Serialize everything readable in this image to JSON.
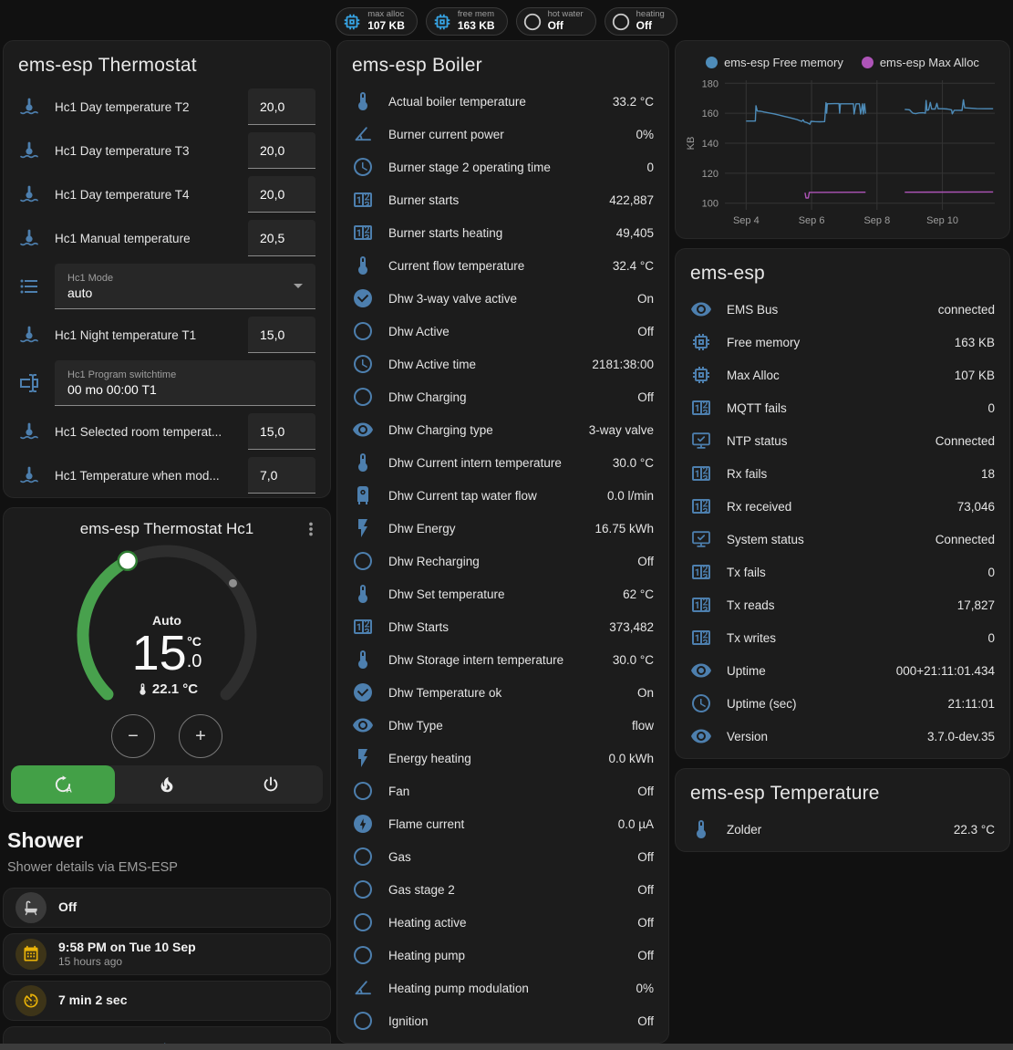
{
  "colors": {
    "icon_blue": "#4d7fae",
    "badge_icon_blue": "#36a3e3",
    "active_green": "#43a047",
    "dial_green": "#48a14d",
    "amber": "#eab308",
    "chart_free_memory": "#4e8cb9",
    "chart_max_alloc": "#ae54b8"
  },
  "header_badges": [
    {
      "label": "max alloc",
      "value": "107 KB",
      "icon": "chip-icon",
      "style": "blue"
    },
    {
      "label": "free mem",
      "value": "163 KB",
      "icon": "chip-icon",
      "style": "blue"
    },
    {
      "label": "hot water",
      "value": "Off",
      "icon": "circle-outline-icon",
      "style": "gray"
    },
    {
      "label": "heating",
      "value": "Off",
      "icon": "circle-outline-icon",
      "style": "gray"
    }
  ],
  "thermostat_card": {
    "title": "ems-esp Thermostat",
    "rows": [
      {
        "type": "number",
        "icon": "thermometer-water-icon",
        "label": "Hc1 Day temperature T2",
        "value": "20,0"
      },
      {
        "type": "number",
        "icon": "thermometer-water-icon",
        "label": "Hc1 Day temperature T3",
        "value": "20,0"
      },
      {
        "type": "number",
        "icon": "thermometer-water-icon",
        "label": "Hc1 Day temperature T4",
        "value": "20,0"
      },
      {
        "type": "number",
        "icon": "thermometer-water-icon",
        "label": "Hc1 Manual temperature",
        "value": "20,5"
      },
      {
        "type": "select",
        "icon": "format-list-icon",
        "label": "Hc1 Mode",
        "value": "auto"
      },
      {
        "type": "number",
        "icon": "thermometer-water-icon",
        "label": "Hc1 Night temperature T1",
        "value": "15,0"
      },
      {
        "type": "text",
        "icon": "form-textbox-icon",
        "label": "Hc1 Program switchtime",
        "value": "00 mo 00:00 T1"
      },
      {
        "type": "number",
        "icon": "thermometer-water-icon",
        "label": "Hc1 Selected room temperat...",
        "value": "15,0"
      },
      {
        "type": "number",
        "icon": "thermometer-water-icon",
        "label": "Hc1 Temperature when mod...",
        "value": "7,0"
      }
    ]
  },
  "dial_card": {
    "title": "ems-esp Thermostat Hc1",
    "mode_label": "Auto",
    "target_int": "15",
    "target_frac": ".0",
    "unit": "°C",
    "current": "22.1 °C",
    "arc_start_deg": -135,
    "arc_end_deg": 135,
    "fill_end_deg": -28,
    "marker_deg": 52,
    "modes": [
      {
        "name": "auto",
        "icon": "thermostat-auto-icon",
        "active": true
      },
      {
        "name": "heat",
        "icon": "fire-icon",
        "active": false
      },
      {
        "name": "off",
        "icon": "power-icon",
        "active": false
      }
    ]
  },
  "shower_section": {
    "title": "Shower",
    "subtitle": "Shower details via EMS-ESP",
    "cards": [
      {
        "icon": "bathtub-icon",
        "style": "gray",
        "primary": "Off",
        "secondary": ""
      },
      {
        "icon": "calendar-icon",
        "style": "amber",
        "primary": "9:58 PM on Tue 10 Sep",
        "secondary": "15 hours ago"
      },
      {
        "icon": "timer-icon",
        "style": "amber",
        "primary": "7 min 2 sec",
        "secondary": ""
      },
      {
        "icon": "snowflake-alert-icon",
        "style": "plain",
        "primary": "",
        "secondary": ""
      }
    ]
  },
  "boiler_card": {
    "title": "ems-esp Boiler",
    "rows": [
      {
        "icon": "thermometer-icon",
        "label": "Actual boiler temperature",
        "value": "33.2 °C"
      },
      {
        "icon": "angle-acute-icon",
        "label": "Burner current power",
        "value": "0%"
      },
      {
        "icon": "clock-icon",
        "label": "Burner stage 2 operating time",
        "value": "0"
      },
      {
        "icon": "counter-icon",
        "label": "Burner starts",
        "value": "422,887"
      },
      {
        "icon": "counter-icon",
        "label": "Burner starts heating",
        "value": "49,405"
      },
      {
        "icon": "thermometer-icon",
        "label": "Current flow temperature",
        "value": "32.4 °C"
      },
      {
        "icon": "check-circle-icon",
        "label": "Dhw 3-way valve active",
        "value": "On"
      },
      {
        "icon": "circle-outline-icon",
        "label": "Dhw Active",
        "value": "Off"
      },
      {
        "icon": "clock-icon",
        "label": "Dhw Active time",
        "value": "2181:38:00"
      },
      {
        "icon": "circle-outline-icon",
        "label": "Dhw Charging",
        "value": "Off"
      },
      {
        "icon": "eye-icon",
        "label": "Dhw Charging type",
        "value": "3-way valve"
      },
      {
        "icon": "thermometer-icon",
        "label": "Dhw Current intern temperature",
        "value": "30.0 °C"
      },
      {
        "icon": "water-boiler-icon",
        "label": "Dhw Current tap water flow",
        "value": "0.0 l/min"
      },
      {
        "icon": "flash-icon",
        "label": "Dhw Energy",
        "value": "16.75 kWh"
      },
      {
        "icon": "circle-outline-icon",
        "label": "Dhw Recharging",
        "value": "Off"
      },
      {
        "icon": "thermometer-icon",
        "label": "Dhw Set temperature",
        "value": "62 °C"
      },
      {
        "icon": "counter-icon",
        "label": "Dhw Starts",
        "value": "373,482"
      },
      {
        "icon": "thermometer-icon",
        "label": "Dhw Storage intern temperature",
        "value": "30.0 °C"
      },
      {
        "icon": "check-circle-icon",
        "label": "Dhw Temperature ok",
        "value": "On"
      },
      {
        "icon": "eye-icon",
        "label": "Dhw Type",
        "value": "flow"
      },
      {
        "icon": "flash-icon",
        "label": "Energy heating",
        "value": "0.0 kWh"
      },
      {
        "icon": "circle-outline-icon",
        "label": "Fan",
        "value": "Off"
      },
      {
        "icon": "flash-circle-icon",
        "label": "Flame current",
        "value": "0.0 µA"
      },
      {
        "icon": "circle-outline-icon",
        "label": "Gas",
        "value": "Off"
      },
      {
        "icon": "circle-outline-icon",
        "label": "Gas stage 2",
        "value": "Off"
      },
      {
        "icon": "circle-outline-icon",
        "label": "Heating active",
        "value": "Off"
      },
      {
        "icon": "circle-outline-icon",
        "label": "Heating pump",
        "value": "Off"
      },
      {
        "icon": "angle-acute-icon",
        "label": "Heating pump modulation",
        "value": "0%"
      },
      {
        "icon": "circle-outline-icon",
        "label": "Ignition",
        "value": "Off"
      }
    ]
  },
  "chart_data": {
    "type": "line",
    "title": "",
    "ylabel": "KB",
    "ylim": [
      98,
      182
    ],
    "yticks": [
      100,
      120,
      140,
      160,
      180
    ],
    "xlim": [
      3.35,
      11.6
    ],
    "xticks": [
      "Sep 4",
      "Sep 6",
      "Sep 8",
      "Sep 10"
    ],
    "xtick_values": [
      4,
      6,
      8,
      10
    ],
    "grid": true,
    "legend_position": "top",
    "series": [
      {
        "name": "ems-esp Free memory",
        "color": "#4e8cb9",
        "segments": [
          [
            [
              4.0,
              154.8
            ],
            [
              4.28,
              154.8
            ],
            [
              4.3,
              165
            ],
            [
              4.34,
              161.5
            ],
            [
              4.45,
              161.3
            ],
            [
              4.55,
              160.8
            ],
            [
              4.7,
              160.2
            ],
            [
              4.85,
              159.6
            ],
            [
              5.0,
              158.8
            ],
            [
              5.15,
              158.0
            ],
            [
              5.3,
              157.2
            ],
            [
              5.45,
              156.4
            ],
            [
              5.55,
              155.8
            ],
            [
              5.65,
              155.0
            ],
            [
              5.7,
              154.6
            ],
            [
              5.74,
              155.6
            ],
            [
              5.78,
              154.2
            ],
            [
              5.85,
              153.8
            ],
            [
              5.9,
              153.3
            ],
            [
              5.95,
              152.7
            ],
            [
              5.98,
              154.6
            ],
            [
              6.1,
              154.4
            ],
            [
              6.25,
              154.3
            ],
            [
              6.4,
              154.4
            ],
            [
              6.44,
              167.0
            ],
            [
              6.46,
              160.0
            ],
            [
              6.48,
              166.3
            ],
            [
              6.7,
              166.4
            ],
            [
              6.84,
              166.4
            ],
            [
              6.86,
              160.0
            ],
            [
              6.88,
              166.3
            ],
            [
              7.1,
              166.3
            ],
            [
              7.28,
              166.3
            ],
            [
              7.3,
              159.5
            ],
            [
              7.36,
              166.3
            ],
            [
              7.46,
              166.3
            ],
            [
              7.5,
              159.5
            ],
            [
              7.56,
              166.3
            ],
            [
              7.58,
              159.5
            ],
            [
              7.62,
              166.3
            ],
            [
              7.65,
              159.8
            ]
          ],
          [
            [
              8.85,
              162.6
            ],
            [
              8.95,
              162.4
            ],
            [
              9.0,
              162.2
            ],
            [
              9.05,
              161.0
            ],
            [
              9.1,
              160.0
            ],
            [
              9.18,
              159.7
            ],
            [
              9.28,
              160.2
            ],
            [
              9.4,
              160.3
            ],
            [
              9.48,
              160.0
            ],
            [
              9.5,
              168.5
            ],
            [
              9.53,
              162.0
            ],
            [
              9.58,
              162.3
            ],
            [
              9.63,
              167.2
            ],
            [
              9.67,
              162.8
            ],
            [
              9.78,
              162.8
            ],
            [
              9.83,
              166.6
            ],
            [
              9.87,
              163.0
            ],
            [
              10.0,
              163.0
            ],
            [
              10.15,
              162.8
            ],
            [
              10.28,
              162.3
            ],
            [
              10.3,
              159.6
            ],
            [
              10.36,
              162.0
            ],
            [
              10.5,
              162.0
            ],
            [
              10.6,
              161.9
            ],
            [
              10.64,
              169.0
            ],
            [
              10.68,
              163.6
            ],
            [
              10.85,
              163.4
            ],
            [
              11.05,
              163.1
            ],
            [
              11.3,
              163.0
            ],
            [
              11.55,
              163.0
            ]
          ]
        ]
      },
      {
        "name": "ems-esp Max Alloc",
        "color": "#ae54b8",
        "segments": [
          [
            [
              5.8,
              107.0
            ],
            [
              5.83,
              103.5
            ],
            [
              5.9,
              103.5
            ],
            [
              5.93,
              107.2
            ],
            [
              7.65,
              107.3
            ]
          ],
          [
            [
              8.85,
              107.3
            ],
            [
              11.55,
              107.5
            ]
          ]
        ]
      }
    ]
  },
  "emsesp_card": {
    "title": "ems-esp",
    "rows": [
      {
        "icon": "eye-icon",
        "label": "EMS Bus",
        "value": "connected"
      },
      {
        "icon": "chip-icon",
        "label": "Free memory",
        "value": "163 KB"
      },
      {
        "icon": "chip-icon",
        "label": "Max Alloc",
        "value": "107 KB"
      },
      {
        "icon": "counter-icon",
        "label": "MQTT fails",
        "value": "0"
      },
      {
        "icon": "monitor-check-icon",
        "label": "NTP status",
        "value": "Connected"
      },
      {
        "icon": "counter-icon",
        "label": "Rx fails",
        "value": "18"
      },
      {
        "icon": "counter-icon",
        "label": "Rx received",
        "value": "73,046"
      },
      {
        "icon": "monitor-check-icon",
        "label": "System status",
        "value": "Connected"
      },
      {
        "icon": "counter-icon",
        "label": "Tx fails",
        "value": "0"
      },
      {
        "icon": "counter-icon",
        "label": "Tx reads",
        "value": "17,827"
      },
      {
        "icon": "counter-icon",
        "label": "Tx writes",
        "value": "0"
      },
      {
        "icon": "eye-icon",
        "label": "Uptime",
        "value": "000+21:11:01.434"
      },
      {
        "icon": "clock-icon",
        "label": "Uptime (sec)",
        "value": "21:11:01"
      },
      {
        "icon": "eye-icon",
        "label": "Version",
        "value": "3.7.0-dev.35"
      }
    ]
  },
  "temperature_card": {
    "title": "ems-esp Temperature",
    "rows": [
      {
        "icon": "thermometer-icon",
        "label": "Zolder",
        "value": "22.3 °C"
      }
    ]
  }
}
